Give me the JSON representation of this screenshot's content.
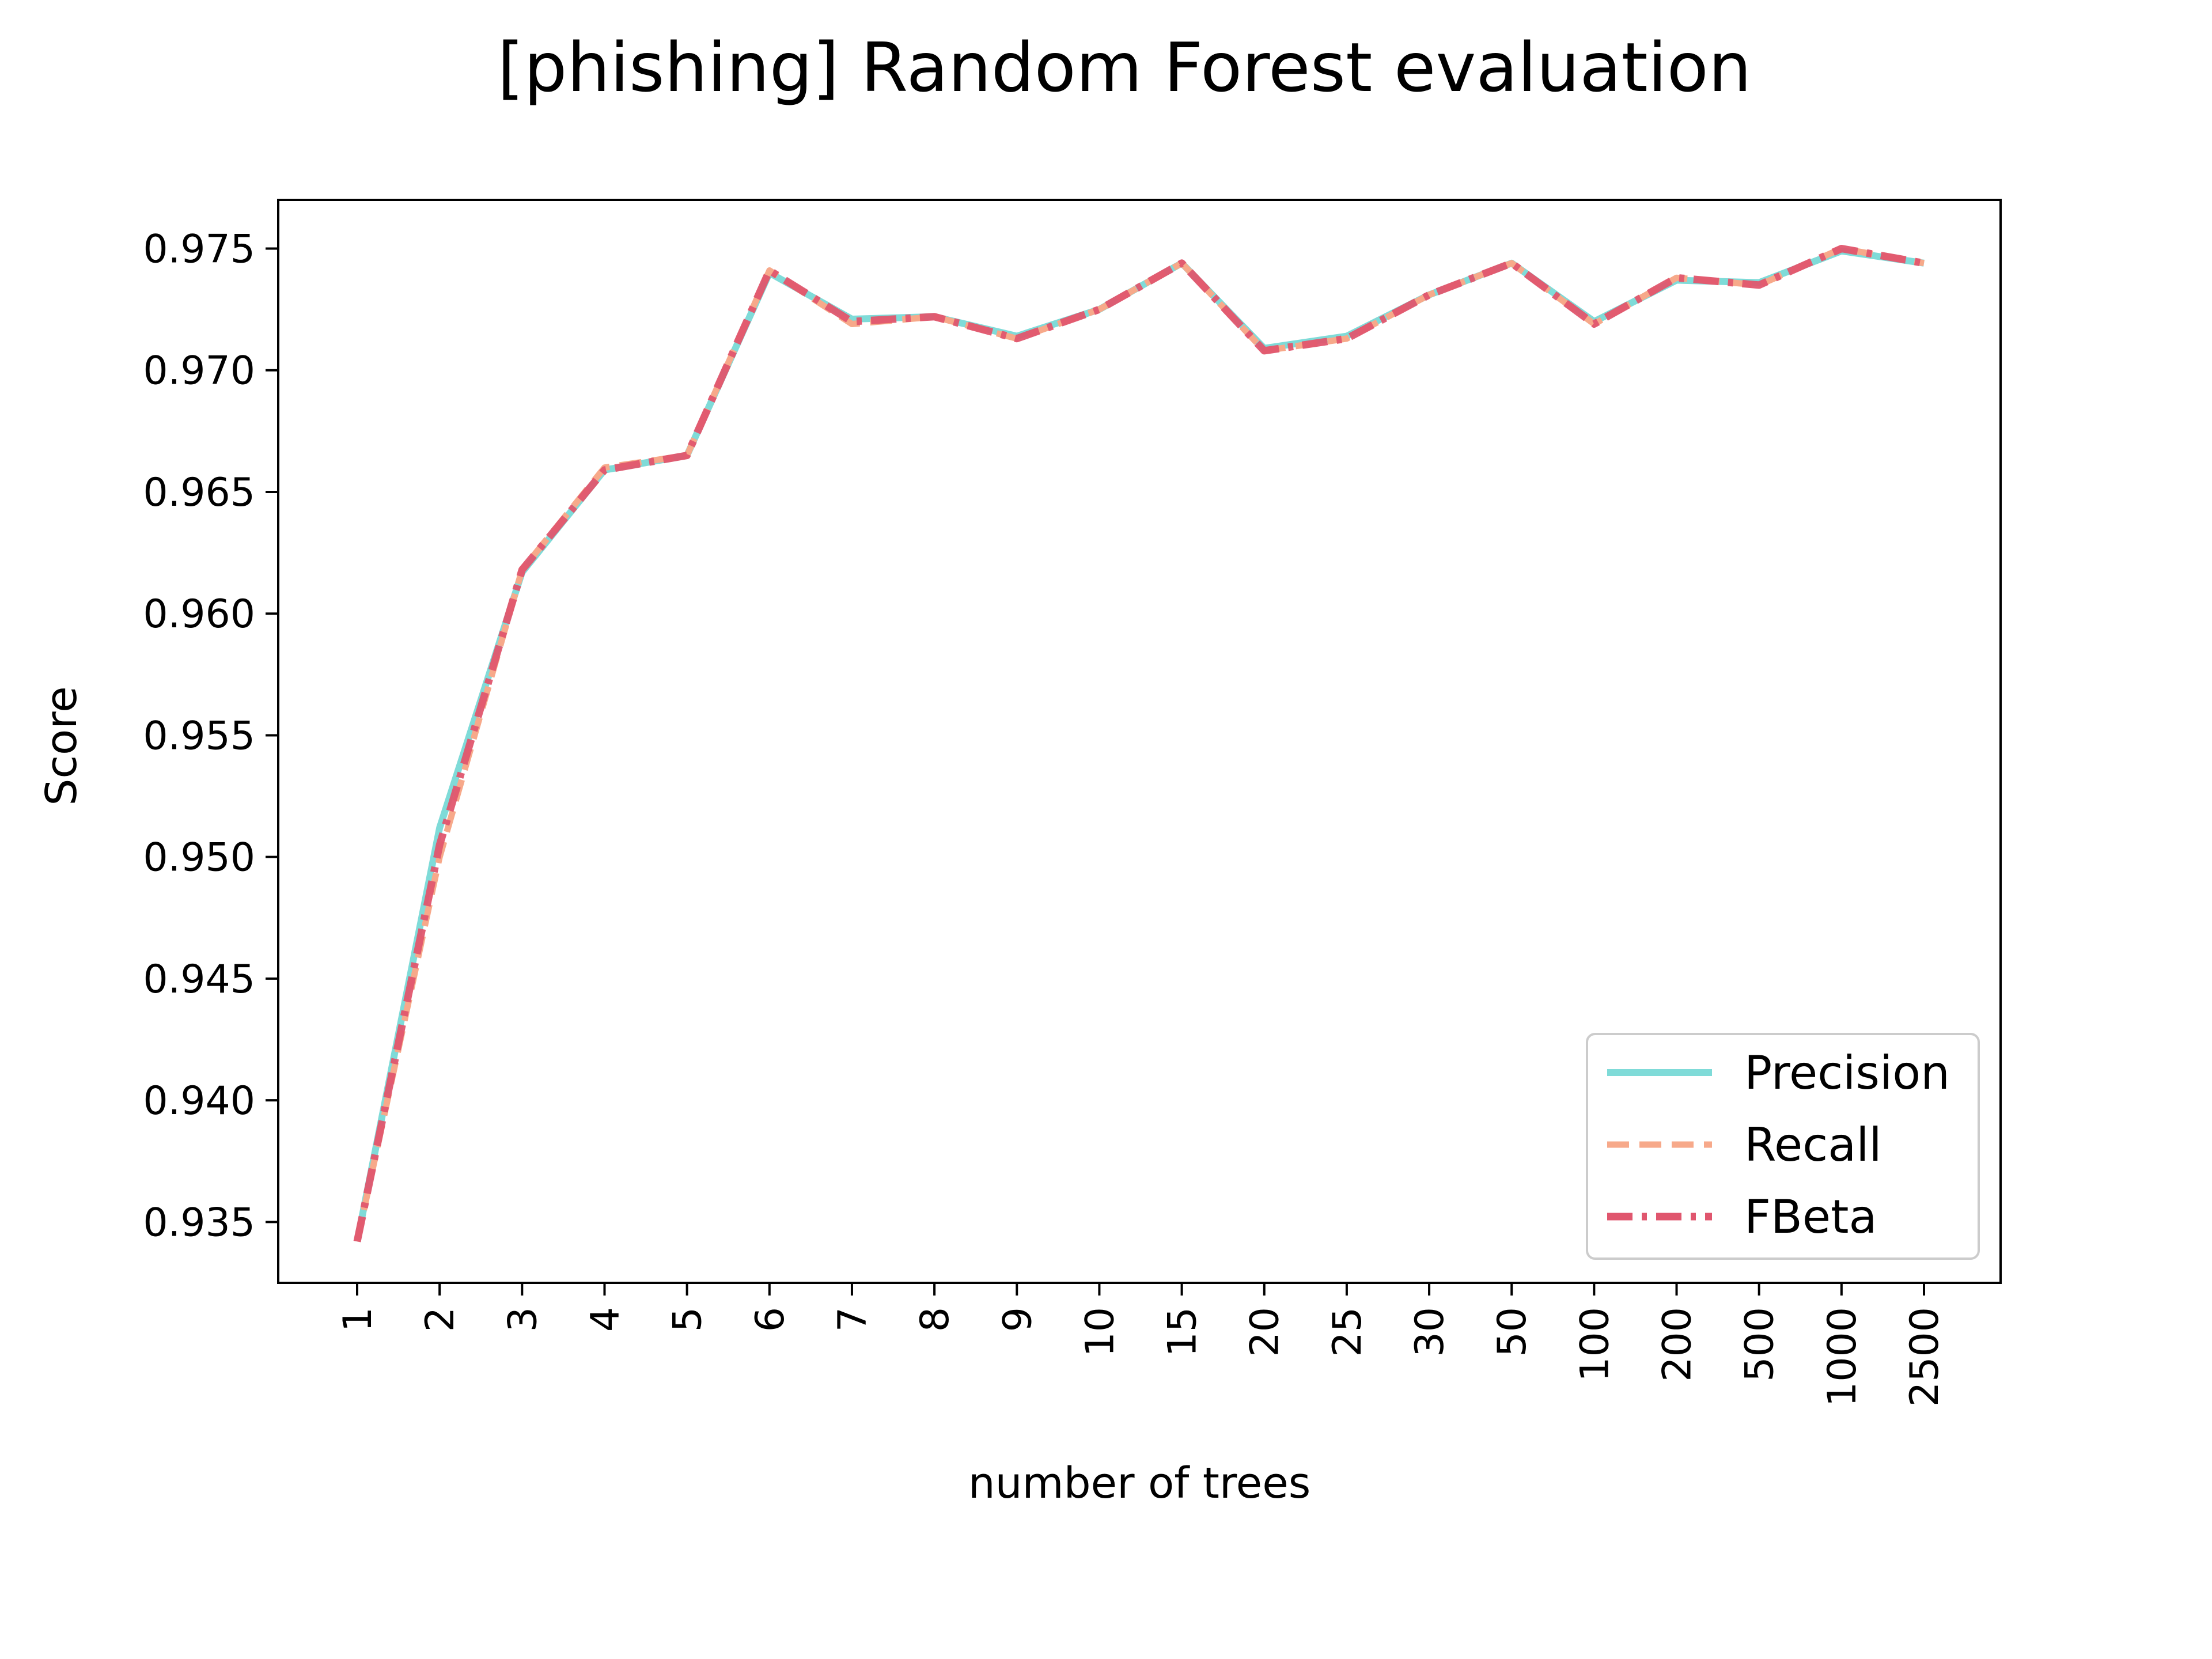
{
  "chart_data": {
    "type": "line",
    "title": "[phishing] Random Forest evaluation",
    "xlabel": "number of trees",
    "ylabel": "Score",
    "categories": [
      "1",
      "2",
      "3",
      "4",
      "5",
      "6",
      "7",
      "8",
      "9",
      "10",
      "15",
      "20",
      "25",
      "30",
      "50",
      "100",
      "200",
      "500",
      "1000",
      "2500"
    ],
    "ylim": [
      0.9325,
      0.977
    ],
    "yticks": [
      "0.935",
      "0.940",
      "0.945",
      "0.950",
      "0.955",
      "0.960",
      "0.965",
      "0.970",
      "0.975"
    ],
    "grid": false,
    "legend_position": "lower-right",
    "series": [
      {
        "name": "Precision",
        "color": "#7fdbd8",
        "style": "solid",
        "values": [
          0.9342,
          0.9512,
          0.9617,
          0.9659,
          0.9665,
          0.974,
          0.9721,
          0.9722,
          0.9714,
          0.9725,
          0.9744,
          0.9709,
          0.9714,
          0.9731,
          0.9744,
          0.972,
          0.9737,
          0.9736,
          0.9749,
          0.9744
        ]
      },
      {
        "name": "Recall",
        "color": "#f7a98a",
        "style": "dashed",
        "values": [
          0.9342,
          0.95,
          0.9618,
          0.966,
          0.9665,
          0.9741,
          0.9719,
          0.9722,
          0.9713,
          0.9725,
          0.9744,
          0.9708,
          0.9713,
          0.9731,
          0.9744,
          0.9719,
          0.9738,
          0.9735,
          0.975,
          0.9744
        ]
      },
      {
        "name": "FBeta",
        "color": "#e0566e",
        "style": "dashdot",
        "values": [
          0.9342,
          0.9505,
          0.9618,
          0.9659,
          0.9665,
          0.9741,
          0.972,
          0.9722,
          0.9713,
          0.9725,
          0.9744,
          0.9708,
          0.9713,
          0.9731,
          0.9744,
          0.9719,
          0.9738,
          0.9735,
          0.975,
          0.9744
        ]
      }
    ]
  }
}
